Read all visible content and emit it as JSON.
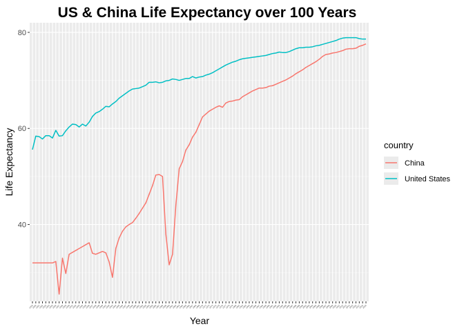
{
  "chart_data": {
    "type": "line",
    "title": "US & China Life Expectancy over 100 Years",
    "xlabel": "Year",
    "ylabel": "Life Expectancy",
    "xlim": [
      1919,
      2019
    ],
    "ylim": [
      24,
      82
    ],
    "yticks": [
      40,
      60,
      80
    ],
    "grid": true,
    "legend": {
      "title": "country",
      "position": "right"
    },
    "x": [
      1919,
      1920,
      1921,
      1922,
      1923,
      1924,
      1925,
      1926,
      1927,
      1928,
      1929,
      1930,
      1931,
      1932,
      1933,
      1934,
      1935,
      1936,
      1937,
      1938,
      1939,
      1940,
      1941,
      1942,
      1943,
      1944,
      1945,
      1946,
      1947,
      1948,
      1949,
      1950,
      1951,
      1952,
      1953,
      1954,
      1955,
      1956,
      1957,
      1958,
      1959,
      1960,
      1961,
      1962,
      1963,
      1964,
      1965,
      1966,
      1967,
      1968,
      1969,
      1970,
      1971,
      1972,
      1973,
      1974,
      1975,
      1976,
      1977,
      1978,
      1979,
      1980,
      1981,
      1982,
      1983,
      1984,
      1985,
      1986,
      1987,
      1988,
      1989,
      1990,
      1991,
      1992,
      1993,
      1994,
      1995,
      1996,
      1997,
      1998,
      1999,
      2000,
      2001,
      2002,
      2003,
      2004,
      2005,
      2006,
      2007,
      2008,
      2009,
      2010,
      2011,
      2012,
      2013,
      2014,
      2015,
      2016,
      2017,
      2018,
      2019
    ],
    "series": [
      {
        "name": "China",
        "color": "#F8766D",
        "values": [
          32.0,
          32.0,
          32.0,
          32.0,
          32.0,
          32.0,
          32.0,
          32.3,
          25.5,
          33.0,
          29.8,
          33.8,
          34.2,
          34.6,
          35.0,
          35.4,
          35.8,
          36.2,
          34.0,
          33.8,
          34.1,
          34.4,
          34.1,
          32.2,
          29.0,
          35.0,
          37.2,
          38.6,
          39.5,
          40.0,
          40.4,
          41.3,
          42.3,
          43.4,
          44.5,
          46.3,
          48.1,
          50.3,
          50.4,
          50.0,
          38.0,
          31.6,
          33.8,
          44.0,
          51.6,
          53.1,
          55.5,
          56.6,
          58.2,
          59.2,
          60.8,
          62.4,
          63.0,
          63.6,
          64.0,
          64.4,
          64.7,
          64.4,
          65.3,
          65.6,
          65.7,
          65.9,
          66.0,
          66.6,
          67.0,
          67.4,
          67.8,
          68.1,
          68.4,
          68.4,
          68.5,
          68.8,
          68.9,
          69.2,
          69.5,
          69.8,
          70.1,
          70.5,
          70.9,
          71.4,
          71.8,
          72.2,
          72.7,
          73.1,
          73.5,
          73.9,
          74.4,
          75.0,
          75.4,
          75.5,
          75.7,
          75.8,
          76.0,
          76.2,
          76.5,
          76.6,
          76.6,
          76.7,
          77.1,
          77.3,
          77.6
        ]
      },
      {
        "name": "United States",
        "color": "#00BFC4",
        "values": [
          55.6,
          58.4,
          58.3,
          57.8,
          58.5,
          58.5,
          58.0,
          59.6,
          58.4,
          58.5,
          59.5,
          60.3,
          60.9,
          60.8,
          60.3,
          60.9,
          60.5,
          61.3,
          62.5,
          63.2,
          63.5,
          64.0,
          64.6,
          64.5,
          65.1,
          65.6,
          66.3,
          66.8,
          67.3,
          67.8,
          68.2,
          68.3,
          68.4,
          68.7,
          69.0,
          69.6,
          69.6,
          69.7,
          69.5,
          69.6,
          69.9,
          70.0,
          70.3,
          70.2,
          70.0,
          70.2,
          70.4,
          70.4,
          70.8,
          70.5,
          70.7,
          70.8,
          71.1,
          71.3,
          71.6,
          72.0,
          72.4,
          72.8,
          73.2,
          73.5,
          73.8,
          74.0,
          74.3,
          74.5,
          74.6,
          74.7,
          74.8,
          74.9,
          75.0,
          75.1,
          75.2,
          75.4,
          75.6,
          75.7,
          75.9,
          75.8,
          75.8,
          76.0,
          76.3,
          76.6,
          76.8,
          76.8,
          76.9,
          76.9,
          77.0,
          77.2,
          77.3,
          77.5,
          77.7,
          77.9,
          78.1,
          78.3,
          78.6,
          78.8,
          78.9,
          78.9,
          78.9,
          78.9,
          78.7,
          78.6,
          78.6
        ]
      }
    ]
  }
}
